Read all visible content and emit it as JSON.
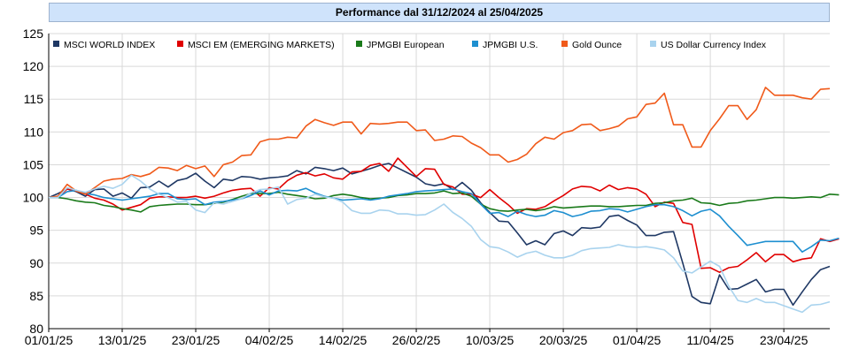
{
  "header": {
    "title": "Performance dal 31/12/2024 al 25/04/2025"
  },
  "chart_data": {
    "type": "line",
    "title": "Performance dal 31/12/2024 al 25/04/2025",
    "xlabel": "",
    "ylabel": "",
    "ylim": [
      80,
      125
    ],
    "yticks": [
      80,
      85,
      90,
      95,
      100,
      105,
      110,
      115,
      120,
      125
    ],
    "xticks": [
      "01/01/25",
      "13/01/25",
      "23/01/25",
      "04/02/25",
      "14/02/25",
      "26/02/25",
      "10/03/25",
      "20/03/25",
      "01/04/25",
      "11/04/25",
      "23/04/25"
    ],
    "xtick_index": [
      0,
      8,
      16,
      24,
      32,
      40,
      48,
      56,
      64,
      72,
      80
    ],
    "grid": true,
    "legend_position": "top",
    "series": [
      {
        "name": "MSCI WORLD INDEX",
        "color": "#1f3864",
        "values": [
          100,
          100.6,
          101.3,
          100.9,
          100.2,
          101.2,
          101.3,
          100.2,
          100.7,
          99.9,
          101.5,
          101.6,
          102.5,
          101.6,
          102.6,
          102.9,
          103.7,
          102.5,
          101.5,
          102.8,
          102.6,
          103.2,
          103.1,
          102.8,
          103.0,
          103.1,
          103.3,
          104.1,
          103.6,
          104.6,
          104.4,
          104.1,
          104.5,
          103.6,
          104.0,
          104.4,
          104.9,
          105.2,
          104.5,
          103.8,
          103.1,
          102.1,
          101.8,
          102.1,
          101.2,
          102.3,
          101.1,
          99.2,
          97.7,
          96.4,
          96.3,
          94.6,
          92.8,
          93.4,
          92.8,
          94.5,
          94.9,
          94.2,
          95.4,
          95.3,
          95.5,
          97.1,
          97.3,
          96.5,
          95.8,
          94.2,
          94.2,
          94.7,
          94.8,
          90.0,
          84.9,
          84.0,
          83.8,
          88.2,
          86.0,
          86.1,
          86.8,
          87.5,
          85.6,
          86.0,
          86.0,
          83.6,
          85.6,
          87.5,
          89.0,
          89.5
        ]
      },
      {
        "name": "MSCI EM (EMERGING MARKETS)",
        "color": "#e00000",
        "values": [
          100,
          100,
          101.3,
          101.0,
          100.5,
          99.9,
          99.6,
          99.0,
          98.1,
          98.5,
          98.9,
          99.9,
          100.1,
          100.1,
          100.0,
          100.0,
          100.2,
          99.9,
          100.2,
          100.7,
          101.1,
          101.3,
          101.4,
          100.2,
          101.5,
          101.3,
          102.6,
          103.4,
          103.8,
          103.3,
          103.6,
          103.0,
          102.8,
          103.9,
          104.0,
          104.9,
          105.2,
          104.0,
          106.0,
          104.6,
          103.2,
          104.4,
          104.3,
          102.0,
          101.6,
          100.5,
          100.5,
          100.0,
          101.2,
          100.0,
          98.9,
          97.6,
          98.3,
          98.2,
          98.6,
          99.5,
          100.3,
          101.3,
          101.7,
          101.6,
          101.0,
          101.9,
          101.2,
          101.5,
          101.3,
          100.5,
          98.6,
          99.3,
          99.1,
          96.2,
          95.9,
          89.2,
          89.3,
          88.6,
          89.3,
          89.5,
          90.5,
          91.6,
          90.2,
          91.3,
          91.3,
          90.2,
          90.6,
          90.8,
          93.7,
          93.3,
          93.7
        ]
      },
      {
        "name": "JPMGBI European",
        "color": "#1a7a1a",
        "values": [
          100,
          100,
          99.8,
          99.5,
          99.3,
          99.2,
          98.8,
          98.6,
          98.3,
          98.1,
          97.8,
          98.6,
          98.8,
          98.9,
          99.0,
          99.0,
          98.9,
          98.9,
          99.1,
          99.3,
          99.7,
          100.2,
          100.6,
          100.6,
          100.6,
          100.8,
          100.5,
          100.3,
          100.1,
          99.8,
          99.9,
          100.3,
          100.5,
          100.3,
          100.0,
          99.8,
          99.9,
          100.0,
          100.3,
          100.4,
          100.6,
          100.6,
          100.7,
          101.0,
          100.6,
          100.7,
          100.2,
          99.0,
          98.3,
          98.0,
          97.9,
          98.1,
          98.2,
          98.0,
          98.2,
          98.6,
          98.4,
          98.5,
          98.6,
          98.7,
          98.7,
          98.6,
          98.6,
          98.7,
          98.8,
          98.8,
          99.1,
          99.2,
          99.5,
          99.6,
          99.9,
          99.2,
          99.1,
          98.8,
          99.1,
          99.2,
          99.5,
          99.6,
          99.8,
          100.0,
          100.0,
          99.9,
          100.0,
          100.1,
          100.0,
          100.5,
          100.4
        ]
      },
      {
        "name": "JPMGBI U.S.",
        "color": "#1e8fd0",
        "values": [
          100,
          100,
          100.9,
          101.1,
          100.6,
          100.4,
          100.0,
          99.8,
          99.6,
          99.8,
          100.0,
          100.2,
          100.6,
          100.6,
          99.8,
          99.7,
          99.8,
          98.9,
          99.3,
          99.4,
          99.6,
          99.8,
          100.3,
          101.0,
          100.4,
          101.0,
          101.1,
          101.0,
          101.4,
          100.7,
          100.2,
          99.9,
          99.6,
          99.7,
          99.8,
          99.6,
          99.8,
          100.2,
          100.4,
          100.6,
          100.9,
          101.0,
          101.1,
          101.2,
          101.3,
          100.9,
          100.6,
          99.0,
          97.6,
          97.7,
          97.1,
          97.9,
          97.4,
          97.1,
          97.3,
          98.0,
          97.7,
          97.1,
          97.4,
          97.9,
          98.0,
          98.3,
          98.2,
          97.8,
          98.2,
          98.6,
          98.9,
          98.9,
          98.6,
          98.0,
          97.2,
          97.9,
          98.2,
          97.2,
          95.6,
          94.2,
          92.7,
          93.0,
          93.3,
          93.3,
          93.3,
          93.3,
          91.7,
          92.5,
          93.5,
          93.4,
          93.8
        ]
      },
      {
        "name": "Gold Ounce",
        "color": "#f05a1a",
        "values": [
          100,
          100.2,
          102.0,
          101.0,
          100.5,
          101.5,
          102.5,
          102.8,
          102.9,
          103.5,
          103.2,
          103.6,
          104.6,
          104.5,
          104.1,
          104.9,
          104.4,
          104.8,
          103.2,
          105.0,
          105.4,
          106.4,
          106.5,
          108.5,
          108.9,
          108.9,
          109.2,
          109.1,
          110.9,
          111.9,
          111.4,
          111.0,
          111.5,
          111.5,
          109.7,
          111.3,
          111.2,
          111.3,
          111.5,
          111.5,
          110.2,
          110.3,
          108.7,
          108.9,
          109.4,
          109.3,
          108.3,
          107.6,
          106.5,
          106.5,
          105.4,
          105.8,
          106.6,
          108.2,
          109.2,
          108.9,
          109.9,
          110.2,
          111.1,
          111.2,
          110.2,
          110.5,
          110.9,
          112.0,
          112.3,
          114.2,
          114.4,
          115.9,
          111.1,
          111.1,
          107.7,
          107.7,
          110.2,
          112.0,
          114.0,
          114.0,
          111.9,
          113.4,
          116.8,
          115.6,
          115.6,
          115.6,
          115.2,
          115.0,
          116.5,
          116.6
        ]
      },
      {
        "name": "US Dollar Currency Index",
        "color": "#a9d3ee",
        "values": [
          100,
          100,
          101.5,
          101.1,
          100.8,
          101.3,
          101.7,
          101.4,
          102.0,
          103.4,
          102.5,
          101.3,
          100.5,
          100.0,
          99.3,
          99.4,
          98.1,
          97.7,
          99.2,
          99.0,
          99.4,
          99.8,
          100.7,
          101.2,
          101.3,
          101.6,
          99.0,
          99.7,
          99.9,
          100.5,
          100.1,
          99.9,
          99.3,
          98.0,
          97.6,
          97.6,
          98.1,
          98.0,
          97.5,
          97.5,
          97.3,
          97.4,
          98.1,
          99.0,
          97.7,
          96.8,
          95.6,
          93.6,
          92.5,
          92.3,
          91.7,
          90.9,
          91.5,
          91.8,
          91.2,
          90.8,
          90.8,
          91.2,
          91.9,
          92.2,
          92.3,
          92.4,
          92.8,
          92.5,
          92.4,
          92.5,
          92.3,
          92.0,
          90.8,
          88.8,
          88.5,
          89.4,
          90.3,
          89.5,
          86.5,
          84.3,
          84.0,
          84.6,
          84.0,
          84.0,
          83.5,
          83.0,
          82.5,
          83.6,
          83.7,
          84.1
        ]
      }
    ]
  }
}
